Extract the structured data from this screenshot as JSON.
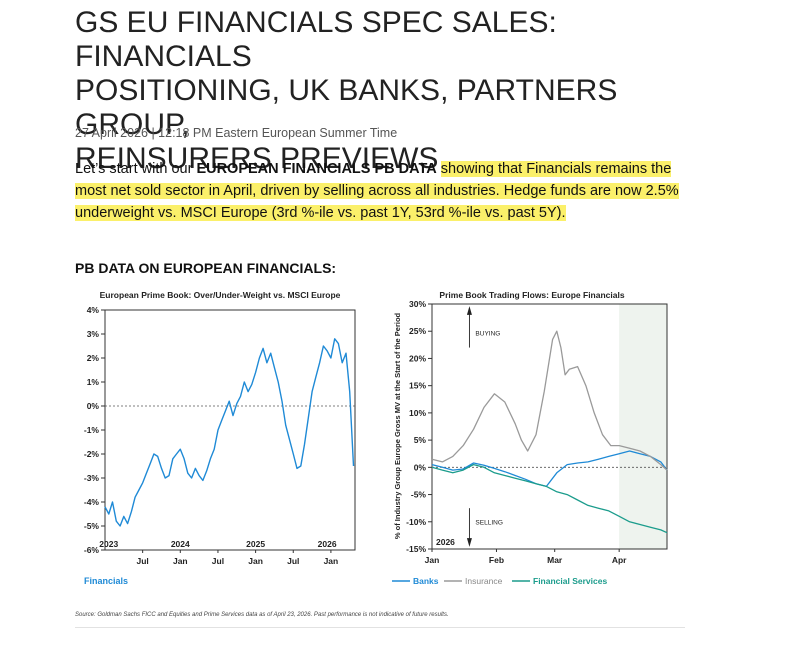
{
  "article": {
    "title_lines": [
      "GS EU FINANCIALS SPEC SALES: FINANCIALS",
      "POSITIONING, UK BANKS, PARTNERS GROUP,",
      "REINSURERS PREVIEWS"
    ],
    "dateline": "27 April 2026 | 12:18 PM Eastern European Summer Time",
    "paragraph": {
      "plain": "Let’s start with our ",
      "bold": "EUROPEAN FINANCIALS PB DATA",
      "highlight": "showing that Financials remains the most net sold sector in April, driven by selling across all industries. Hedge funds are now 2.5% underweight vs. MSCI Europe (3rd %-ile vs. past 1Y, 53rd %-ile vs. past 5Y)."
    },
    "section_heading": "PB DATA ON EUROPEAN FINANCIALS:",
    "source_note": "Source: Goldman Sachs FICC and Equities and Prime Services data as of April 23, 2026. Past performance is not indicative of future results."
  },
  "chart_data": [
    {
      "type": "line",
      "title": "European Prime Book: Over/Under-Weight vs. MSCI Europe",
      "xlabel": "",
      "ylabel": "",
      "ylim": [
        -6,
        4
      ],
      "yticks": [
        4,
        3,
        2,
        1,
        0,
        -1,
        -2,
        -3,
        -4,
        -5,
        -6
      ],
      "ytick_labels": [
        "4%",
        "3%",
        "2%",
        "1%",
        "0%",
        "-1%",
        "-2%",
        "-3%",
        "-4%",
        "-5%",
        "-6%"
      ],
      "xtick_labels": [
        "Jul",
        "Jan",
        "Jul",
        "Jan",
        "Jul",
        "Jan"
      ],
      "xtick_positions": [
        2023.5,
        2024.0,
        2024.5,
        2025.0,
        2025.5,
        2026.0
      ],
      "year_labels": [
        "2023",
        "2024",
        "2025",
        "2026"
      ],
      "year_positions": [
        2023.05,
        2024.0,
        2025.0,
        2025.95
      ],
      "xlim": [
        2023.0,
        2026.32
      ],
      "reference_line": 0,
      "series": [
        {
          "name": "Financials",
          "color": "#1f8ad6",
          "x": [
            2023.0,
            2023.05,
            2023.1,
            2023.15,
            2023.2,
            2023.25,
            2023.3,
            2023.35,
            2023.4,
            2023.45,
            2023.5,
            2023.55,
            2023.6,
            2023.65,
            2023.7,
            2023.75,
            2023.8,
            2023.85,
            2023.9,
            2023.95,
            2024.0,
            2024.05,
            2024.1,
            2024.15,
            2024.2,
            2024.25,
            2024.3,
            2024.35,
            2024.4,
            2024.45,
            2024.5,
            2024.55,
            2024.6,
            2024.65,
            2024.7,
            2024.75,
            2024.8,
            2024.85,
            2024.9,
            2024.95,
            2025.0,
            2025.05,
            2025.1,
            2025.15,
            2025.2,
            2025.25,
            2025.3,
            2025.35,
            2025.4,
            2025.45,
            2025.5,
            2025.55,
            2025.6,
            2025.65,
            2025.7,
            2025.75,
            2025.8,
            2025.85,
            2025.9,
            2025.95,
            2026.0,
            2026.05,
            2026.1,
            2026.15,
            2026.2,
            2026.25,
            2026.3
          ],
          "values": [
            -4.2,
            -4.5,
            -4.0,
            -4.8,
            -5.0,
            -4.6,
            -4.9,
            -4.4,
            -3.8,
            -3.5,
            -3.2,
            -2.8,
            -2.4,
            -2.0,
            -2.1,
            -2.6,
            -3.0,
            -2.9,
            -2.2,
            -2.0,
            -1.8,
            -2.2,
            -2.8,
            -3.0,
            -2.6,
            -2.9,
            -3.1,
            -2.7,
            -2.2,
            -1.8,
            -1.0,
            -0.6,
            -0.2,
            0.2,
            -0.4,
            0.1,
            0.4,
            1.0,
            0.6,
            0.9,
            1.4,
            2.0,
            2.4,
            1.8,
            2.2,
            1.6,
            1.0,
            0.2,
            -0.8,
            -1.4,
            -2.0,
            -2.6,
            -2.5,
            -1.6,
            -0.5,
            0.6,
            1.2,
            1.8,
            2.5,
            2.3,
            2.0,
            2.8,
            2.6,
            1.8,
            2.2,
            0.6,
            -2.5
          ]
        }
      ]
    },
    {
      "type": "line",
      "title": "Prime Book Trading Flows: Europe Financials",
      "xlabel": "",
      "ylabel": "% of Industry Group Europe Gross MV at the Start of the Period",
      "ylim": [
        -15,
        30
      ],
      "yticks": [
        30,
        25,
        20,
        15,
        10,
        5,
        0,
        -5,
        -10,
        -15
      ],
      "ytick_labels": [
        "30%",
        "25%",
        "20%",
        "15%",
        "10%",
        "5%",
        "0%",
        "-5%",
        "-10%",
        "-15%"
      ],
      "xtick_labels": [
        "Jan",
        "Feb",
        "Mar",
        "Apr"
      ],
      "xtick_positions": [
        0,
        31,
        59,
        90
      ],
      "year_label": "2026",
      "xlim": [
        0,
        113
      ],
      "shaded_from": 90,
      "annotations": [
        "BUYING",
        "SELLING"
      ],
      "reference_line": 0,
      "series": [
        {
          "name": "Banks",
          "color": "#1f8ad6",
          "x": [
            0,
            5,
            10,
            15,
            20,
            25,
            30,
            35,
            40,
            45,
            50,
            55,
            60,
            65,
            70,
            75,
            80,
            85,
            90,
            95,
            100,
            105,
            110,
            113
          ],
          "values": [
            0.5,
            0.0,
            -0.5,
            -0.3,
            0.8,
            0.4,
            -0.2,
            -0.8,
            -1.5,
            -2.2,
            -3.0,
            -3.5,
            -1.0,
            0.5,
            0.8,
            1.0,
            1.5,
            2.0,
            2.5,
            3.0,
            2.5,
            2.0,
            1.0,
            -0.5
          ]
        },
        {
          "name": "Insurance",
          "color": "#9a9a9a",
          "x": [
            0,
            5,
            10,
            15,
            20,
            25,
            30,
            35,
            40,
            43,
            46,
            50,
            54,
            58,
            60,
            62,
            64,
            66,
            70,
            74,
            78,
            82,
            86,
            90,
            95,
            100,
            105,
            110,
            113
          ],
          "values": [
            1.5,
            1.0,
            2.0,
            4.0,
            7.0,
            11.0,
            13.5,
            12.0,
            8.0,
            5.0,
            3.0,
            6.0,
            14.0,
            23.5,
            25.0,
            22.0,
            17.0,
            18.0,
            18.5,
            15.0,
            10.0,
            6.0,
            4.0,
            4.0,
            3.5,
            3.0,
            2.0,
            0.5,
            -0.5
          ]
        },
        {
          "name": "Financial Services",
          "color": "#1b9c8c",
          "x": [
            0,
            5,
            10,
            15,
            20,
            25,
            30,
            35,
            40,
            45,
            50,
            55,
            60,
            65,
            70,
            75,
            80,
            85,
            90,
            95,
            100,
            105,
            110,
            113
          ],
          "values": [
            0.0,
            -0.5,
            -1.0,
            -0.5,
            0.5,
            0.0,
            -1.0,
            -1.5,
            -2.0,
            -2.5,
            -3.0,
            -3.5,
            -4.5,
            -5.0,
            -6.0,
            -7.0,
            -7.5,
            -8.0,
            -9.0,
            -10.0,
            -10.5,
            -11.0,
            -11.5,
            -12.0
          ]
        }
      ]
    }
  ]
}
